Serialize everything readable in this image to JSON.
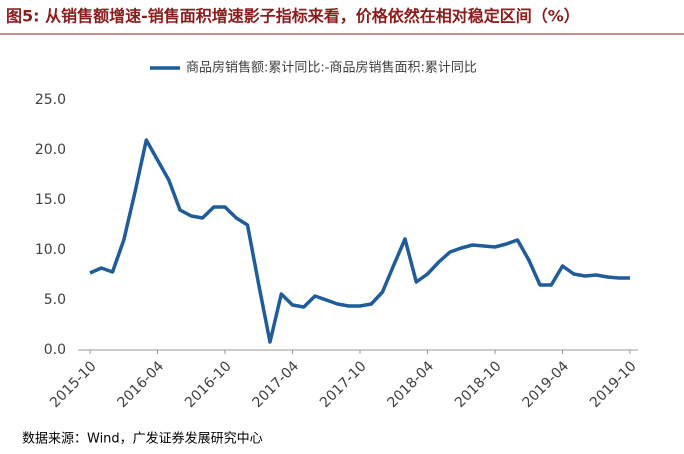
{
  "chart_data": {
    "type": "line",
    "title": "图5: 从销售额增速-销售面积增速影子指标来看，价格依然在相对稳定区间（%）",
    "source": "数据来源：Wind，广发证券发展研究中心",
    "categories": [
      "2015-10",
      null,
      null,
      null,
      null,
      null,
      "2016-04",
      null,
      null,
      null,
      null,
      null,
      "2016-10",
      null,
      null,
      null,
      null,
      null,
      "2017-04",
      null,
      null,
      null,
      null,
      null,
      "2017-10",
      null,
      null,
      null,
      null,
      null,
      "2018-04",
      null,
      null,
      null,
      null,
      null,
      "2018-10",
      null,
      null,
      null,
      null,
      null,
      "2019-04",
      null,
      null,
      null,
      null,
      null,
      "2019-10"
    ],
    "series": [
      {
        "name": "商品房销售额:累计同比:-商品房销售面积:累计同比",
        "color": "#1f5c99",
        "values": [
          7.7,
          8.2,
          7.8,
          11.0,
          15.8,
          21.0,
          19.0,
          17.0,
          14.0,
          13.4,
          13.2,
          14.3,
          14.3,
          13.2,
          12.5,
          6.5,
          0.8,
          5.6,
          4.5,
          4.3,
          5.4,
          5.0,
          4.6,
          4.4,
          4.4,
          4.6,
          5.8,
          8.5,
          11.1,
          6.8,
          7.6,
          8.8,
          9.8,
          10.2,
          10.5,
          10.4,
          10.3,
          10.6,
          11.0,
          9.0,
          6.5,
          6.5,
          8.4,
          7.6,
          7.4,
          7.5,
          7.3,
          7.2,
          7.2
        ]
      }
    ],
    "ylim": [
      0,
      25
    ],
    "yticks": [
      {
        "value": 0,
        "label": "0.0"
      },
      {
        "value": 5,
        "label": "5.0"
      },
      {
        "value": 10,
        "label": "10.0"
      },
      {
        "value": 15,
        "label": "15.0"
      },
      {
        "value": 20,
        "label": "20.0"
      },
      {
        "value": 25,
        "label": "25.0"
      }
    ],
    "legend": "top"
  }
}
